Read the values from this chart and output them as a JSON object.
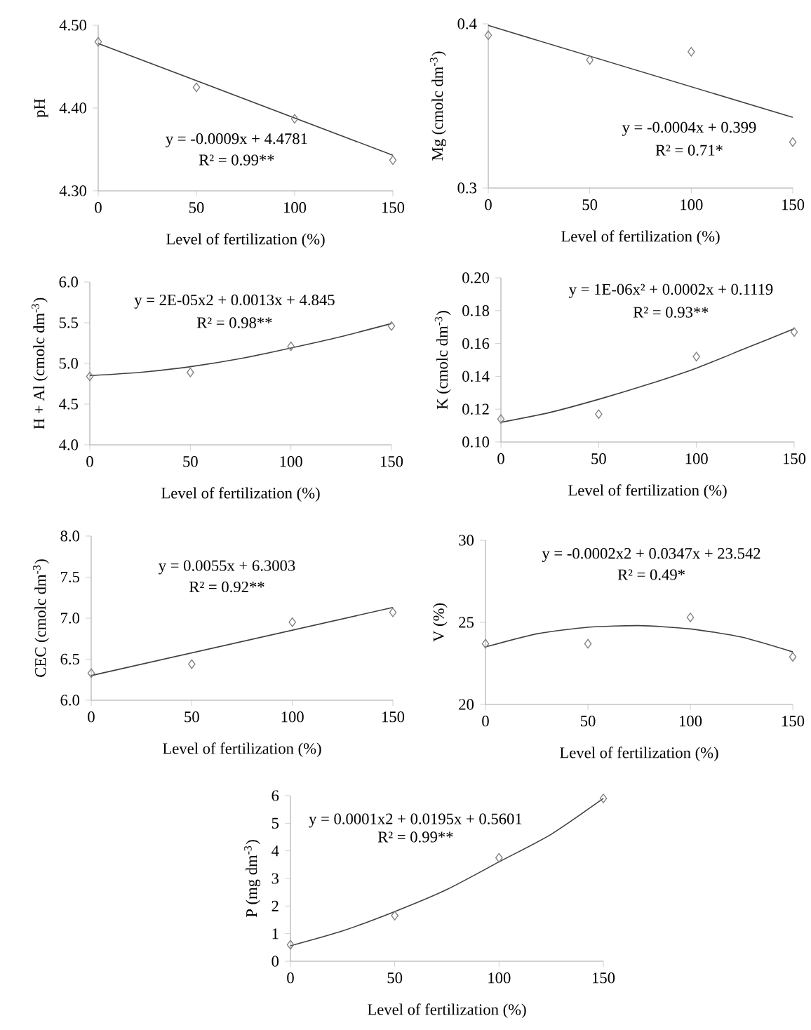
{
  "chart_data": [
    {
      "type": "scatter",
      "xlabel": "Level of fertilization (%)",
      "ylabel": "pH",
      "xlim": [
        0,
        150
      ],
      "xticks": [
        0,
        50,
        100,
        150
      ],
      "ylim": [
        4.3,
        4.5
      ],
      "yticks": [
        {
          "value": 4.3,
          "label": "4.30"
        },
        {
          "value": 4.4,
          "label": "4.40"
        },
        {
          "value": 4.5,
          "label": "4.50"
        }
      ],
      "series": [
        {
          "type": "line",
          "color": "#404040",
          "marker": "none",
          "x": [
            0,
            150
          ],
          "values": [
            4.478,
            4.343
          ]
        },
        {
          "color": "#7f7f7f",
          "marker": "diamond",
          "x": [
            0,
            50,
            100,
            150
          ],
          "values": [
            4.48,
            4.425,
            4.387,
            4.337
          ]
        }
      ],
      "annotations": [
        "y = -0.0009x + 4.4781",
        "R² = 0.99**"
      ]
    },
    {
      "type": "scatter",
      "xlabel": "Level of fertilization (%)",
      "ylabel": "Mg  (cmolc dm$^{-3}$)",
      "xlim": [
        0,
        150
      ],
      "xticks": [
        0,
        50,
        100,
        150
      ],
      "ylim": [
        0.3,
        0.4
      ],
      "yticks": [
        0.3,
        0.4
      ],
      "series": [
        {
          "type": "line",
          "color": "#404040",
          "marker": "none",
          "x": [
            0,
            150
          ],
          "values": [
            0.399,
            0.343
          ]
        },
        {
          "color": "#7f7f7f",
          "marker": "diamond",
          "x": [
            0,
            50,
            100,
            150
          ],
          "values": [
            0.393,
            0.378,
            0.383,
            0.328
          ]
        }
      ],
      "annotations": [
        "y = -0.0004x + 0.399",
        "R² = 0.71*"
      ]
    },
    {
      "type": "scatter",
      "xlabel": "Level of fertilization (%)",
      "ylabel": "H + Al (cmolc dm$^{-3}$)",
      "xlim": [
        0,
        150
      ],
      "xticks": [
        0,
        50,
        100,
        150
      ],
      "ylim": [
        4.0,
        6.0
      ],
      "yticks": [
        {
          "value": 4.0,
          "label": "4.0"
        },
        {
          "value": 4.5,
          "label": "4.5"
        },
        {
          "value": 5.0,
          "label": "5.0"
        },
        {
          "value": 5.5,
          "label": "5.5"
        },
        {
          "value": 6.0,
          "label": "6.0"
        }
      ],
      "series": [
        {
          "type": "line",
          "color": "#404040",
          "marker": "none",
          "x": [
            0,
            25,
            50,
            75,
            100,
            125,
            150
          ],
          "values": [
            4.85,
            4.89,
            4.96,
            5.06,
            5.19,
            5.33,
            5.49
          ]
        },
        {
          "color": "#7f7f7f",
          "marker": "diamond",
          "x": [
            0,
            50,
            100,
            150
          ],
          "values": [
            4.84,
            4.89,
            5.21,
            5.46
          ]
        }
      ],
      "annotations": [
        "y = 2E-05x2 + 0.0013x + 4.845",
        "R² = 0.98**"
      ]
    },
    {
      "type": "scatter",
      "xlabel": "Level of fertilization (%)",
      "ylabel": "K (cmolc dm$^{-3}$)",
      "xlim": [
        0,
        150
      ],
      "xticks": [
        0,
        50,
        100,
        150
      ],
      "ylim": [
        0.1,
        0.2
      ],
      "yticks": [
        {
          "value": 0.1,
          "label": "0.10"
        },
        {
          "value": 0.12,
          "label": "0.12"
        },
        {
          "value": 0.14,
          "label": "0.14"
        },
        {
          "value": 0.16,
          "label": "0.16"
        },
        {
          "value": 0.18,
          "label": "0.18"
        },
        {
          "value": 0.2,
          "label": "0.20"
        }
      ],
      "series": [
        {
          "type": "line",
          "color": "#404040",
          "marker": "none",
          "x": [
            0,
            25,
            50,
            75,
            100,
            125,
            150
          ],
          "values": [
            0.112,
            0.118,
            0.126,
            0.135,
            0.145,
            0.157,
            0.169
          ]
        },
        {
          "color": "#7f7f7f",
          "marker": "diamond",
          "x": [
            0,
            50,
            100,
            150
          ],
          "values": [
            0.114,
            0.117,
            0.152,
            0.167
          ]
        }
      ],
      "annotations": [
        "y = 1E-06x² + 0.0002x + 0.1119",
        "R² = 0.93**"
      ]
    },
    {
      "type": "scatter",
      "xlabel": "Level of fertilization (%)",
      "ylabel": "CEC (cmolc dm$^{-3}$)",
      "xlim": [
        0,
        150
      ],
      "xticks": [
        0,
        50,
        100,
        150
      ],
      "ylim": [
        6.0,
        8.0
      ],
      "yticks": [
        {
          "value": 6.0,
          "label": "6.0"
        },
        {
          "value": 6.5,
          "label": "6.5"
        },
        {
          "value": 7.0,
          "label": "7.0"
        },
        {
          "value": 7.5,
          "label": "7.5"
        },
        {
          "value": 8.0,
          "label": "8.0"
        }
      ],
      "series": [
        {
          "type": "line",
          "color": "#404040",
          "marker": "none",
          "x": [
            0,
            150
          ],
          "values": [
            6.3,
            7.13
          ]
        },
        {
          "color": "#7f7f7f",
          "marker": "diamond",
          "x": [
            0,
            50,
            100,
            150
          ],
          "values": [
            6.33,
            6.44,
            6.95,
            7.07
          ]
        }
      ],
      "annotations": [
        "y = 0.0055x + 6.3003",
        "R² = 0.92**"
      ]
    },
    {
      "type": "scatter",
      "xlabel": "Level of fertilization (%)",
      "ylabel": "V (%)",
      "xlim": [
        0,
        150
      ],
      "xticks": [
        0,
        50,
        100,
        150
      ],
      "ylim": [
        20,
        30
      ],
      "yticks": [
        20,
        25,
        30
      ],
      "series": [
        {
          "type": "line",
          "color": "#404040",
          "marker": "none",
          "x": [
            0,
            25,
            50,
            75,
            100,
            125,
            150
          ],
          "values": [
            23.5,
            24.3,
            24.7,
            24.8,
            24.6,
            24.1,
            23.2
          ]
        },
        {
          "color": "#7f7f7f",
          "marker": "diamond",
          "x": [
            0,
            50,
            100,
            150
          ],
          "values": [
            23.7,
            23.7,
            25.3,
            22.9
          ]
        }
      ],
      "annotations": [
        "y = -0.0002x2 + 0.0347x + 23.542",
        "R² = 0.49*"
      ]
    },
    {
      "type": "scatter",
      "xlabel": "Level of fertilization (%)",
      "ylabel": "P (mg dm$^{-3}$)",
      "xlim": [
        0,
        150
      ],
      "xticks": [
        0,
        50,
        100,
        150
      ],
      "ylim": [
        0,
        6
      ],
      "yticks": [
        0,
        1,
        2,
        3,
        4,
        5,
        6
      ],
      "series": [
        {
          "type": "line",
          "color": "#404040",
          "marker": "none",
          "x": [
            0,
            25,
            50,
            75,
            100,
            125,
            150
          ],
          "values": [
            0.56,
            1.1,
            1.8,
            2.6,
            3.6,
            4.6,
            5.9
          ]
        },
        {
          "color": "#7f7f7f",
          "marker": "diamond",
          "x": [
            0,
            50,
            100,
            150
          ],
          "values": [
            0.6,
            1.65,
            3.75,
            5.9
          ]
        }
      ],
      "annotations": [
        "y = 0.0001x2 + 0.0195x + 0.5601",
        "R² = 0.99**"
      ]
    }
  ]
}
